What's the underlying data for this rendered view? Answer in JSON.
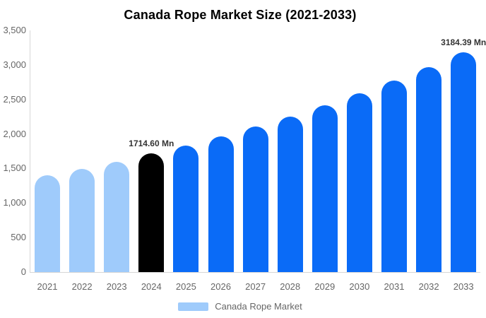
{
  "title": "Canada Rope Market Size (2021-2033)",
  "legend": {
    "label": "Canada Rope Market",
    "swatch_color": "#9fcbfb"
  },
  "colors": {
    "historical_bar": "#9fcbfb",
    "base_year_bar": "#000000",
    "forecast_bar": "#0a6bf7",
    "axis_line": "#d6d6d6",
    "tick_text": "#666666",
    "data_label_text": "#333333",
    "title_text": "#000000"
  },
  "chart_data": {
    "type": "bar",
    "title": "Canada Rope Market Size (2021-2033)",
    "xlabel": "",
    "ylabel": "",
    "unit": "Mn",
    "ylim": [
      0,
      3500
    ],
    "grid": false,
    "legend_position": "bottom",
    "categories": [
      "2021",
      "2022",
      "2023",
      "2024",
      "2025",
      "2026",
      "2027",
      "2028",
      "2029",
      "2030",
      "2031",
      "2032",
      "2033"
    ],
    "values": [
      1400,
      1495,
      1598,
      1714.6,
      1836,
      1966,
      2106,
      2256,
      2417,
      2589,
      2773,
      2971,
      3184.39
    ],
    "bar_colors": [
      "#9fcbfb",
      "#9fcbfb",
      "#9fcbfb",
      "#000000",
      "#0a6bf7",
      "#0a6bf7",
      "#0a6bf7",
      "#0a6bf7",
      "#0a6bf7",
      "#0a6bf7",
      "#0a6bf7",
      "#0a6bf7",
      "#0a6bf7"
    ],
    "yticks": [
      {
        "value": 0,
        "label": "0"
      },
      {
        "value": 500,
        "label": "500"
      },
      {
        "value": 1000,
        "label": "1,000"
      },
      {
        "value": 1500,
        "label": "1,500"
      },
      {
        "value": 2000,
        "label": "2,000"
      },
      {
        "value": 2500,
        "label": "2,500"
      },
      {
        "value": 3000,
        "label": "3,000"
      },
      {
        "value": 3500,
        "label": "3,500"
      }
    ],
    "data_labels": {
      "2024": "1714.60 Mn",
      "2033": "3184.39 Mn"
    },
    "legend_entries": [
      "Canada Rope Market"
    ]
  }
}
